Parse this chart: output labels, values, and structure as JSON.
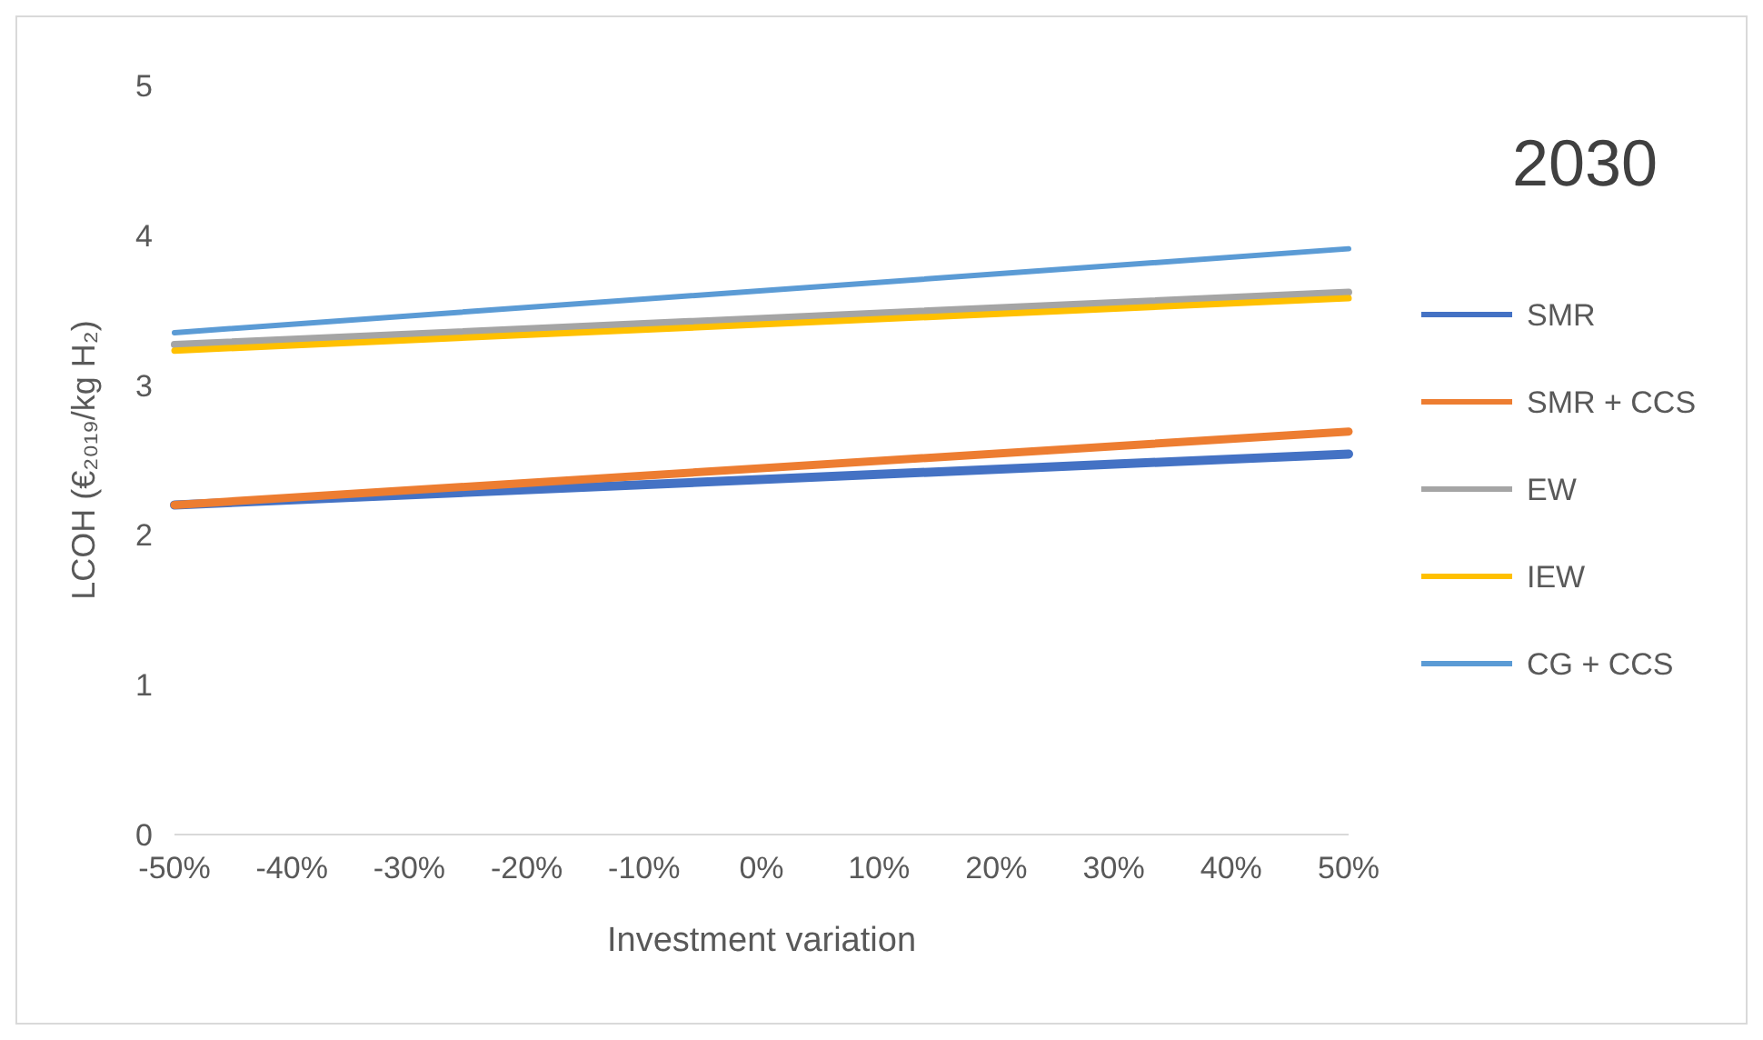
{
  "chart_data": {
    "type": "line",
    "title": "2030",
    "xlabel": "Investment variation",
    "ylabel": "LCOH (€₂₀₁₉/kg H₂)",
    "x": [
      -50,
      50
    ],
    "series": [
      {
        "name": "SMR",
        "color": "#4472c4",
        "values": [
          2.2,
          2.54
        ]
      },
      {
        "name": "SMR + CCS",
        "color": "#ed7d31",
        "values": [
          2.2,
          2.69
        ]
      },
      {
        "name": "EW",
        "color": "#a5a5a5",
        "values": [
          3.27,
          3.62
        ]
      },
      {
        "name": "IEW",
        "color": "#ffc000",
        "values": [
          3.23,
          3.58
        ]
      },
      {
        "name": "CG + CCS",
        "color": "#5b9bd5",
        "values": [
          3.35,
          3.91
        ]
      }
    ],
    "xlim": [
      -50,
      50
    ],
    "xticks": [
      {
        "value": -50,
        "label": "-50%"
      },
      {
        "value": -40,
        "label": "-40%"
      },
      {
        "value": -30,
        "label": "-30%"
      },
      {
        "value": -20,
        "label": "-20%"
      },
      {
        "value": -10,
        "label": "-10%"
      },
      {
        "value": 0,
        "label": "0%"
      },
      {
        "value": 10,
        "label": "10%"
      },
      {
        "value": 20,
        "label": "20%"
      },
      {
        "value": 30,
        "label": "30%"
      },
      {
        "value": 40,
        "label": "40%"
      },
      {
        "value": 50,
        "label": "50%"
      }
    ],
    "ylim": [
      0,
      5
    ],
    "yticks": [
      0,
      1,
      2,
      3,
      4,
      5
    ],
    "grid": false,
    "legend": "right",
    "marker": "none",
    "line_style": "solid"
  }
}
